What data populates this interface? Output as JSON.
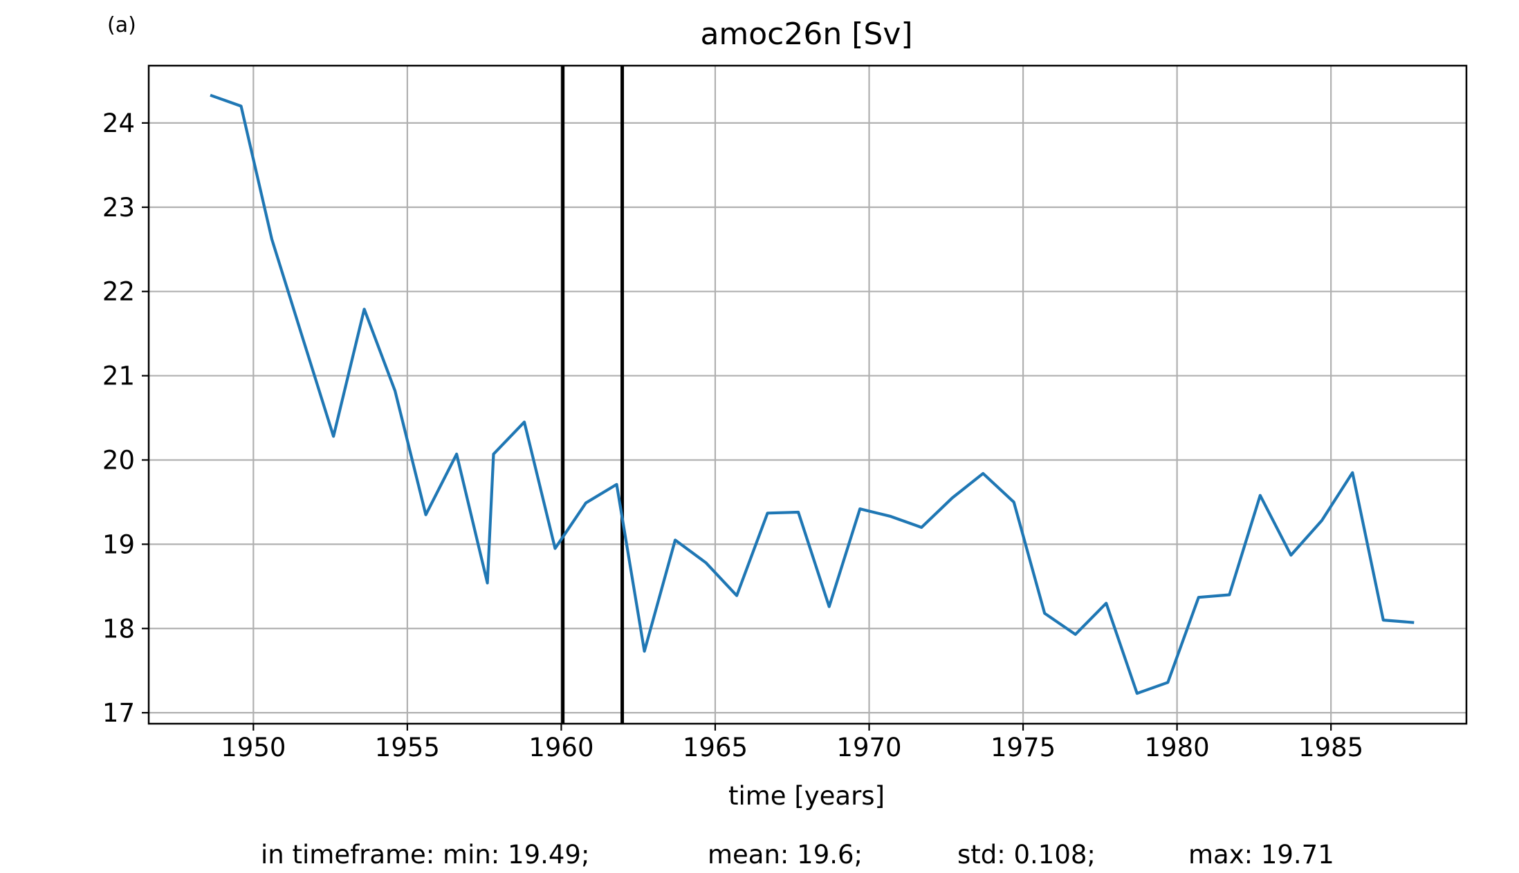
{
  "panel_label": "(a)",
  "stats": {
    "min": "in timeframe: min: 19.49;",
    "mean": "mean: 19.6;",
    "std": "std: 0.108;",
    "max": "max: 19.71"
  },
  "chart_data": {
    "type": "line",
    "title": "amoc26n [Sv]",
    "xlabel": "time [years]",
    "ylabel": "",
    "xlim": [
      1946.6,
      1989.4
    ],
    "ylim": [
      16.87,
      24.68
    ],
    "xticks": [
      1950,
      1955,
      1960,
      1965,
      1970,
      1975,
      1980,
      1985
    ],
    "yticks": [
      17,
      18,
      19,
      20,
      21,
      22,
      23,
      24
    ],
    "grid": true,
    "line_color": "#1f77b4",
    "vlines": [
      1960.05,
      1961.98
    ],
    "vline_color": "#000000",
    "series": [
      {
        "x": [
          1948.6,
          1949.6,
          1950.6,
          1951.6,
          1952.6,
          1953.6,
          1954.6,
          1955.6,
          1956.6,
          1957.6,
          1957.8,
          1958.8,
          1959.8,
          1960.8,
          1961.8,
          1962.7,
          1963.7,
          1964.7,
          1965.7,
          1966.7,
          1967.7,
          1968.7,
          1969.7,
          1970.7,
          1971.7,
          1972.7,
          1973.7,
          1974.7,
          1975.7,
          1976.7,
          1977.7,
          1978.7,
          1979.7,
          1980.7,
          1981.7,
          1982.7,
          1983.7,
          1984.7,
          1985.7,
          1986.7,
          1987.7
        ],
        "y": [
          24.33,
          24.2,
          22.62,
          21.45,
          20.28,
          21.79,
          20.82,
          19.35,
          20.07,
          18.54,
          20.07,
          20.45,
          18.95,
          19.49,
          19.71,
          17.73,
          19.05,
          18.78,
          18.39,
          19.37,
          19.38,
          18.26,
          19.42,
          19.33,
          19.2,
          19.55,
          19.84,
          19.5,
          18.18,
          17.93,
          18.3,
          17.23,
          17.36,
          18.37,
          18.4,
          19.58,
          18.87,
          19.28,
          19.85,
          18.1,
          18.07
        ]
      }
    ]
  }
}
